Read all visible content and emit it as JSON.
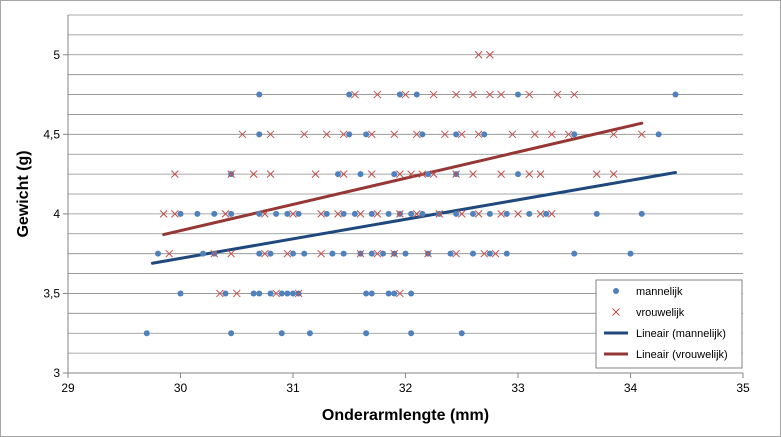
{
  "chart_data": {
    "type": "scatter",
    "xlabel": "Onderarmlengte (mm)",
    "ylabel": "Gewicht (g)",
    "xlim": [
      29,
      35
    ],
    "ylim": [
      3,
      5.25
    ],
    "x_ticks": [
      29,
      30,
      31,
      32,
      33,
      34,
      35
    ],
    "x_tick_labels": [
      "29",
      "30",
      "31",
      "32",
      "33",
      "34",
      "35"
    ],
    "y_ticks": [
      3,
      3.5,
      4,
      4.5,
      5
    ],
    "y_tick_labels": [
      "3",
      "3,5",
      "4",
      "4,5",
      "5"
    ],
    "grid": {
      "horizontal_step": 0.125,
      "vertical": false
    },
    "legend_position": "bottom-right",
    "series": [
      {
        "name": "mannelijk",
        "marker": "circle",
        "color": "#4f81bd",
        "points": [
          [
            29.7,
            3.25
          ],
          [
            30.45,
            3.25
          ],
          [
            30.9,
            3.25
          ],
          [
            31.15,
            3.25
          ],
          [
            31.65,
            3.25
          ],
          [
            32.05,
            3.25
          ],
          [
            32.5,
            3.25
          ],
          [
            30.0,
            3.5
          ],
          [
            30.4,
            3.5
          ],
          [
            30.65,
            3.5
          ],
          [
            30.7,
            3.5
          ],
          [
            30.8,
            3.5
          ],
          [
            30.9,
            3.5
          ],
          [
            30.95,
            3.5
          ],
          [
            31.0,
            3.5
          ],
          [
            31.05,
            3.5
          ],
          [
            31.65,
            3.5
          ],
          [
            31.7,
            3.5
          ],
          [
            31.85,
            3.5
          ],
          [
            31.9,
            3.5
          ],
          [
            32.05,
            3.5
          ],
          [
            29.8,
            3.75
          ],
          [
            30.2,
            3.75
          ],
          [
            30.3,
            3.75
          ],
          [
            30.7,
            3.75
          ],
          [
            30.8,
            3.75
          ],
          [
            31.0,
            3.75
          ],
          [
            31.1,
            3.75
          ],
          [
            31.35,
            3.75
          ],
          [
            31.45,
            3.75
          ],
          [
            31.6,
            3.75
          ],
          [
            31.7,
            3.75
          ],
          [
            31.8,
            3.75
          ],
          [
            31.9,
            3.75
          ],
          [
            32.0,
            3.75
          ],
          [
            32.2,
            3.75
          ],
          [
            32.4,
            3.75
          ],
          [
            32.6,
            3.75
          ],
          [
            32.75,
            3.75
          ],
          [
            32.9,
            3.75
          ],
          [
            33.5,
            3.75
          ],
          [
            34.0,
            3.75
          ],
          [
            30.0,
            4.0
          ],
          [
            30.15,
            4.0
          ],
          [
            30.3,
            4.0
          ],
          [
            30.45,
            4.0
          ],
          [
            30.7,
            4.0
          ],
          [
            30.85,
            4.0
          ],
          [
            30.95,
            4.0
          ],
          [
            31.05,
            4.0
          ],
          [
            31.3,
            4.0
          ],
          [
            31.45,
            4.0
          ],
          [
            31.55,
            4.0
          ],
          [
            31.7,
            4.0
          ],
          [
            31.85,
            4.0
          ],
          [
            31.95,
            4.0
          ],
          [
            32.05,
            4.0
          ],
          [
            32.15,
            4.0
          ],
          [
            32.3,
            4.0
          ],
          [
            32.45,
            4.0
          ],
          [
            32.6,
            4.0
          ],
          [
            32.75,
            4.0
          ],
          [
            32.9,
            4.0
          ],
          [
            33.1,
            4.0
          ],
          [
            33.25,
            4.0
          ],
          [
            33.7,
            4.0
          ],
          [
            34.1,
            4.0
          ],
          [
            30.45,
            4.25
          ],
          [
            31.4,
            4.25
          ],
          [
            31.6,
            4.25
          ],
          [
            31.9,
            4.25
          ],
          [
            32.2,
            4.25
          ],
          [
            32.45,
            4.25
          ],
          [
            33.0,
            4.25
          ],
          [
            30.7,
            4.5
          ],
          [
            31.5,
            4.5
          ],
          [
            31.65,
            4.5
          ],
          [
            32.15,
            4.5
          ],
          [
            32.45,
            4.5
          ],
          [
            32.7,
            4.5
          ],
          [
            33.5,
            4.5
          ],
          [
            34.25,
            4.5
          ],
          [
            30.7,
            4.75
          ],
          [
            31.5,
            4.75
          ],
          [
            31.95,
            4.75
          ],
          [
            32.1,
            4.75
          ],
          [
            33.0,
            4.75
          ],
          [
            34.4,
            4.75
          ]
        ]
      },
      {
        "name": "vrouwelijk",
        "marker": "x",
        "color": "#c0504d",
        "points": [
          [
            30.35,
            3.5
          ],
          [
            30.5,
            3.5
          ],
          [
            30.85,
            3.5
          ],
          [
            31.05,
            3.5
          ],
          [
            31.95,
            3.5
          ],
          [
            29.9,
            3.75
          ],
          [
            30.3,
            3.75
          ],
          [
            30.45,
            3.75
          ],
          [
            30.75,
            3.75
          ],
          [
            30.95,
            3.75
          ],
          [
            31.25,
            3.75
          ],
          [
            31.6,
            3.75
          ],
          [
            31.75,
            3.75
          ],
          [
            31.9,
            3.75
          ],
          [
            32.2,
            3.75
          ],
          [
            32.45,
            3.75
          ],
          [
            32.7,
            3.75
          ],
          [
            32.8,
            3.75
          ],
          [
            29.85,
            4.0
          ],
          [
            29.95,
            4.0
          ],
          [
            30.4,
            4.0
          ],
          [
            30.75,
            4.0
          ],
          [
            31.0,
            4.0
          ],
          [
            31.25,
            4.0
          ],
          [
            31.4,
            4.0
          ],
          [
            31.6,
            4.0
          ],
          [
            31.75,
            4.0
          ],
          [
            31.95,
            4.0
          ],
          [
            32.1,
            4.0
          ],
          [
            32.3,
            4.0
          ],
          [
            32.5,
            4.0
          ],
          [
            32.65,
            4.0
          ],
          [
            32.85,
            4.0
          ],
          [
            33.0,
            4.0
          ],
          [
            33.2,
            4.0
          ],
          [
            33.3,
            4.0
          ],
          [
            29.95,
            4.25
          ],
          [
            30.45,
            4.25
          ],
          [
            30.65,
            4.25
          ],
          [
            30.8,
            4.25
          ],
          [
            31.2,
            4.25
          ],
          [
            31.45,
            4.25
          ],
          [
            31.7,
            4.25
          ],
          [
            31.95,
            4.25
          ],
          [
            32.05,
            4.25
          ],
          [
            32.15,
            4.25
          ],
          [
            32.25,
            4.25
          ],
          [
            32.45,
            4.25
          ],
          [
            32.6,
            4.25
          ],
          [
            32.85,
            4.25
          ],
          [
            33.1,
            4.25
          ],
          [
            33.2,
            4.25
          ],
          [
            33.7,
            4.25
          ],
          [
            33.85,
            4.25
          ],
          [
            30.55,
            4.5
          ],
          [
            30.8,
            4.5
          ],
          [
            31.1,
            4.5
          ],
          [
            31.3,
            4.5
          ],
          [
            31.45,
            4.5
          ],
          [
            31.7,
            4.5
          ],
          [
            31.9,
            4.5
          ],
          [
            32.1,
            4.5
          ],
          [
            32.35,
            4.5
          ],
          [
            32.5,
            4.5
          ],
          [
            32.65,
            4.5
          ],
          [
            32.95,
            4.5
          ],
          [
            33.15,
            4.5
          ],
          [
            33.3,
            4.5
          ],
          [
            33.45,
            4.5
          ],
          [
            33.85,
            4.5
          ],
          [
            34.1,
            4.5
          ],
          [
            31.55,
            4.75
          ],
          [
            31.75,
            4.75
          ],
          [
            32.0,
            4.75
          ],
          [
            32.25,
            4.75
          ],
          [
            32.45,
            4.75
          ],
          [
            32.6,
            4.75
          ],
          [
            32.75,
            4.75
          ],
          [
            32.85,
            4.75
          ],
          [
            33.1,
            4.75
          ],
          [
            33.35,
            4.75
          ],
          [
            33.5,
            4.75
          ],
          [
            32.65,
            5.0
          ],
          [
            32.75,
            5.0
          ]
        ]
      },
      {
        "name": "Lineair (mannelijk)",
        "marker": "line",
        "color": "#1f497d",
        "points": [
          [
            29.75,
            3.69
          ],
          [
            34.4,
            4.26
          ]
        ]
      },
      {
        "name": "Lineair (vrouwelijk)",
        "marker": "line",
        "color": "#953735",
        "points": [
          [
            29.85,
            3.87
          ],
          [
            34.1,
            4.57
          ]
        ]
      }
    ]
  }
}
